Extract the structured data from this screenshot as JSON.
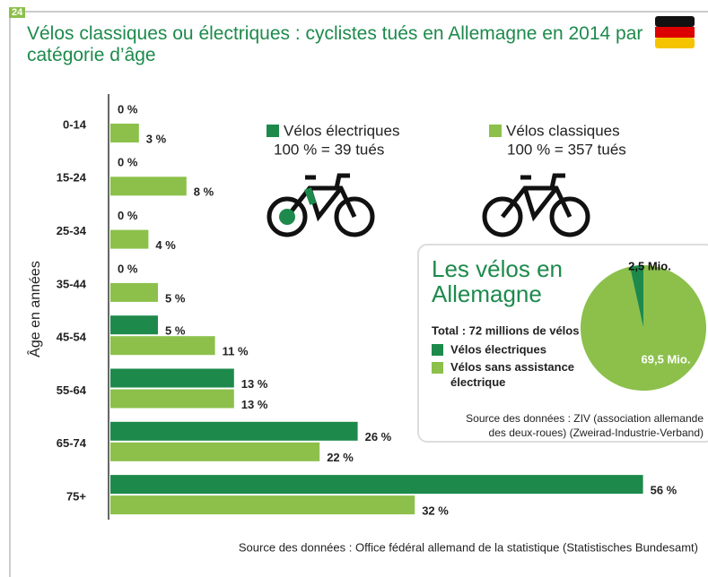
{
  "badge": "24",
  "chart_data": [
    {
      "type": "bar",
      "title": "Vélos classiques ou électriques : cyclistes tués en Allemagne en 2014 par catégorie d’âge",
      "y_label": "Âge en années",
      "categories": [
        "0-14",
        "15-24",
        "25-34",
        "35-44",
        "45-54",
        "55-64",
        "65-74",
        "75+"
      ],
      "series": [
        {
          "name": "Vélos électriques",
          "note": "100 % = 39 tués",
          "color": "#1d8a4c",
          "values": [
            0,
            0,
            0,
            0,
            5,
            13,
            26,
            56
          ],
          "value_labels": [
            "0 %",
            "0 %",
            "0 %",
            "0 %",
            "5 %",
            "13 %",
            "26 %",
            "56 %"
          ]
        },
        {
          "name": "Vélos classiques",
          "note": "100 % = 357 tués",
          "color": "#8cc04b",
          "values": [
            3,
            8,
            4,
            5,
            11,
            13,
            22,
            32
          ],
          "value_labels": [
            "3 %",
            "8 %",
            "4 %",
            "5 %",
            "11 %",
            "13 %",
            "22 %",
            "32 %"
          ]
        }
      ],
      "source": "Source des données : Office fédéral allemand de la statistique (Statistisches Bundesamt)"
    },
    {
      "type": "pie",
      "title": "Les vélos en Allemagne",
      "subtitle": "Total : 72 millions de vélos",
      "categories": [
        "Vélos électriques",
        "Vélos sans assistance électrique"
      ],
      "values": [
        2.5,
        69.5
      ],
      "value_labels": [
        "2,5 Mio.",
        "69,5 Mio."
      ],
      "colors": [
        "#1d8a4c",
        "#8cc04b"
      ],
      "source": "Source des données : ZIV (association allemande des deux-roues) (Zweirad-Industrie-Verband)"
    }
  ]
}
